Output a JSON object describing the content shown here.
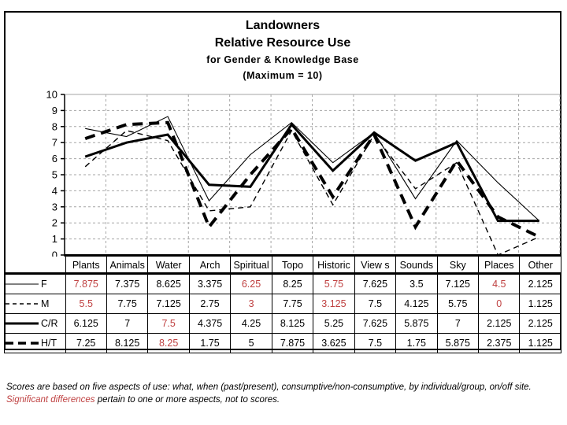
{
  "title": {
    "line1": "Landowners",
    "line2": "Relative Resource Use",
    "line3": "for Gender & Knowledge Base",
    "line4": "(Maximum = 10)"
  },
  "chart_data": {
    "type": "line",
    "title": "Landowners Relative Resource Use for Gender & Knowledge Base (Maximum = 10)",
    "categories": [
      "Plants",
      "Animals",
      "Water",
      "Arch",
      "Spiritual",
      "Topo",
      "Historic",
      "View s",
      "Sounds",
      "Sky",
      "Places",
      "Other"
    ],
    "series": [
      {
        "name": "F",
        "line_style": "thin-solid",
        "values": [
          7.875,
          7.375,
          8.625,
          3.375,
          6.25,
          8.25,
          5.75,
          7.625,
          3.5,
          7.125,
          4.5,
          2.125
        ],
        "significant_indices": [
          0,
          4,
          6,
          10
        ]
      },
      {
        "name": "M",
        "line_style": "thin-dashed",
        "values": [
          5.5,
          7.75,
          7.125,
          2.75,
          3,
          7.75,
          3.125,
          7.5,
          4.125,
          5.75,
          0,
          1.125
        ],
        "significant_indices": [
          0,
          4,
          6,
          10
        ]
      },
      {
        "name": "C/R",
        "line_style": "thick-solid",
        "values": [
          6.125,
          7,
          7.5,
          4.375,
          4.25,
          8.125,
          5.25,
          7.625,
          5.875,
          7,
          2.125,
          2.125
        ],
        "significant_indices": [
          2
        ]
      },
      {
        "name": "H/T",
        "line_style": "thick-dashed",
        "values": [
          7.25,
          8.125,
          8.25,
          1.75,
          5,
          7.875,
          3.625,
          7.5,
          1.75,
          5.875,
          2.375,
          1.125
        ],
        "significant_indices": [
          2
        ]
      }
    ],
    "ylim": [
      0,
      10
    ],
    "yticks": [
      0,
      1,
      2,
      3,
      4,
      5,
      6,
      7,
      8,
      9,
      10
    ],
    "grid": "dashed-gray-both-axes",
    "legend_position": "table-first-column"
  },
  "footnote": {
    "line1": "Scores are based on five aspects of use: what, when (past/present), consumptive/non-consumptive, by individual/group, on/off site.",
    "line2_highlight": "Significant differences",
    "line2_rest": " pertain to one or more aspects, not to scores."
  },
  "colors": {
    "significant_red": "#bf4040",
    "grid_gray": "#a6a6a6",
    "axis_black": "#000000"
  }
}
